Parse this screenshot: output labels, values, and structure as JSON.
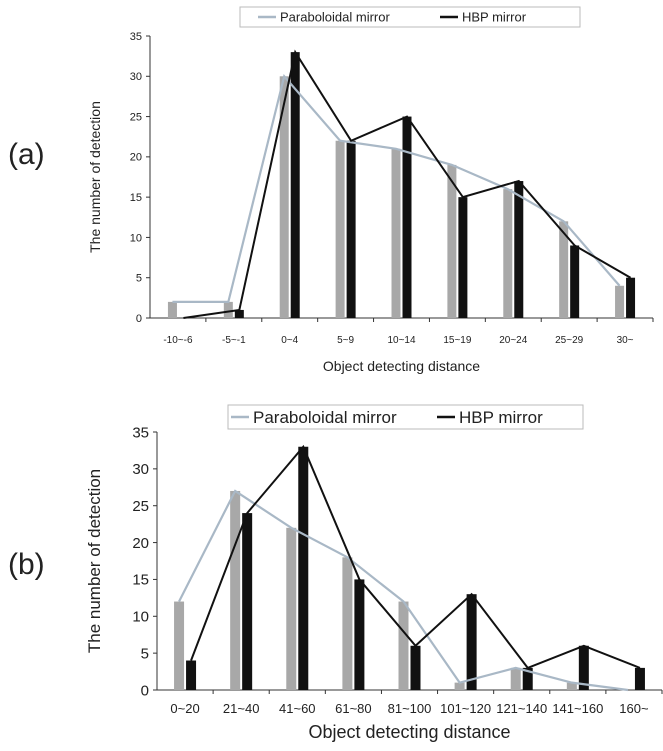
{
  "colors": {
    "paraboloidal": "#a8a8a8",
    "paraboloidal_line": "#a9b8c6",
    "hbp": "#111111",
    "axis": "#333333"
  },
  "panels": [
    {
      "label": "(a)"
    },
    {
      "label": "(b)"
    }
  ],
  "chart_data": [
    {
      "type": "bar",
      "title": "",
      "xlabel": "Object detecting distance",
      "ylabel": "The number of detection",
      "ylim": [
        0,
        35
      ],
      "yticks": [
        0,
        5,
        10,
        15,
        20,
        25,
        30,
        35
      ],
      "categories": [
        "-10~-6",
        "-5~-1",
        "0~4",
        "5~9",
        "10~14",
        "15~19",
        "20~24",
        "25~29",
        "30~"
      ],
      "legend": {
        "placement": "top"
      },
      "grid": false,
      "series": [
        {
          "name": "Paraboloidal mirror",
          "values": [
            2,
            2,
            30,
            22,
            21,
            19,
            16,
            12,
            4
          ]
        },
        {
          "name": "HBP mirror",
          "values": [
            0,
            1,
            33,
            22,
            25,
            15,
            17,
            9,
            5
          ]
        }
      ]
    },
    {
      "type": "bar",
      "title": "",
      "xlabel": "Object detecting distance",
      "ylabel": "The number of detection",
      "ylim": [
        0,
        35
      ],
      "yticks": [
        0,
        5,
        10,
        15,
        20,
        25,
        30,
        35
      ],
      "categories": [
        "0~20",
        "21~40",
        "41~60",
        "61~80",
        "81~100",
        "101~120",
        "121~140",
        "141~160",
        "160~"
      ],
      "legend": {
        "placement": "top"
      },
      "grid": false,
      "series": [
        {
          "name": "Paraboloidal mirror",
          "values": [
            12,
            27,
            22,
            18,
            12,
            1,
            3,
            1,
            0
          ]
        },
        {
          "name": "HBP mirror",
          "values": [
            4,
            24,
            33,
            15,
            6,
            13,
            3,
            6,
            3
          ]
        }
      ]
    }
  ]
}
